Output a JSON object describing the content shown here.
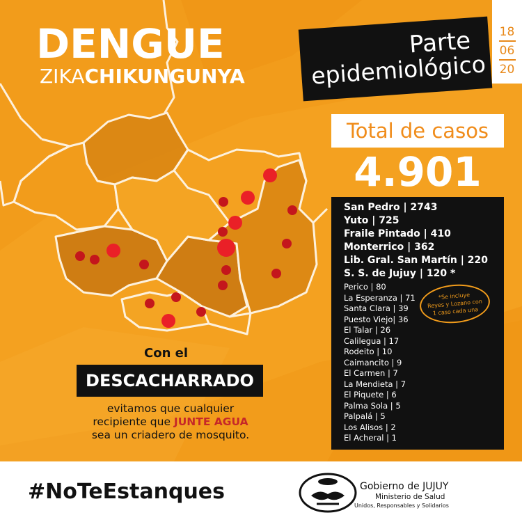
{
  "title": {
    "main": "DENGUE",
    "sub_a": "ZIKA",
    "sub_b": "CHIKUNGUNYA"
  },
  "report": {
    "line1": "Parte",
    "line2": "epidemiológico",
    "date": {
      "day": "18",
      "month": "06",
      "year": "20"
    }
  },
  "total": {
    "label": "Total de casos",
    "value": "4.901"
  },
  "cases_main": [
    "San Pedro | 2743",
    "Yuto | 725",
    "Fraile Pintado | 410",
    "Monterrico | 362",
    "Lib. Gral. San Martín | 220",
    "S. S. de Jujuy | 120 *"
  ],
  "cases_other": [
    "Perico | 80",
    "La Esperanza | 71",
    "Santa Clara | 39",
    "Puesto Viejo| 36",
    "El Talar | 26",
    "Calilegua | 17",
    "Rodeito | 10",
    "Caimancito | 9",
    "El Carmen | 7",
    "La Mendieta | 7",
    "El Piquete | 6",
    "Palma Sola | 5",
    "Palpalá  | 5",
    "Los Alisos | 2",
    "El Acheral | 1"
  ],
  "note": {
    "line1": "*Se incluye",
    "line2": "Reyes y Lozano con",
    "line3": "1 caso cada una"
  },
  "campaign": {
    "intro": "Con el",
    "highlight": "DESCACHARRADO",
    "line1": "evitamos que cualquier",
    "line2a": "recipiente que ",
    "line2b": "JUNTE AGUA",
    "line3": "sea un criadero de mosquito."
  },
  "hashtag": "#NoTeEstanques",
  "government": {
    "name": "Gobierno de JUJUY",
    "ministry": "Ministerio de Salud",
    "slogan": "Unidos, Responsables y Solidarios"
  },
  "colors": {
    "orange": "#f29c1b",
    "dark": "#111111",
    "case_marker": "#e8232a"
  }
}
